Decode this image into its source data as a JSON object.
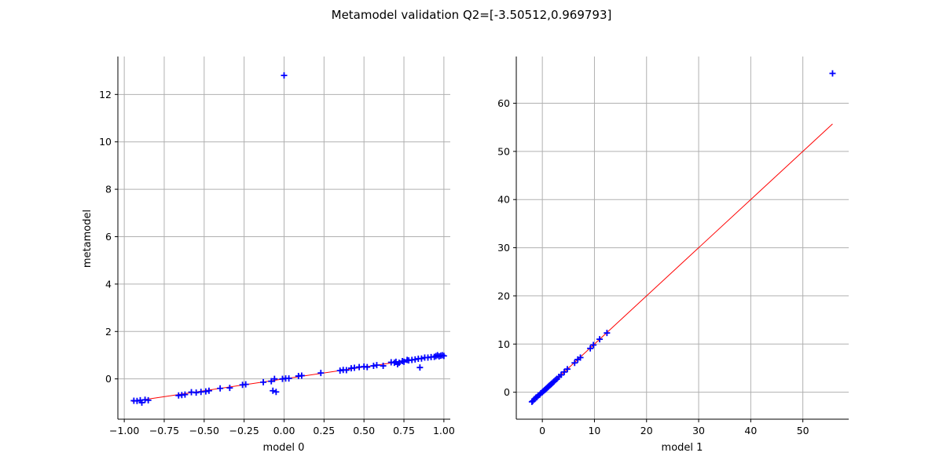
{
  "title": "Metamodel validation Q2=[-3.50512,0.969793]",
  "colors": {
    "points": "#0000ff",
    "diagonal": "#ff0000",
    "grid": "#b0b0b0",
    "axes": "#000000"
  },
  "chart_data": [
    {
      "type": "scatter",
      "xlabel": "model 0",
      "ylabel": "metamodel",
      "xlim": [
        -1.04,
        1.04
      ],
      "ylim": [
        -1.7,
        13.6
      ],
      "xticks": [
        -1.0,
        -0.75,
        -0.5,
        -0.25,
        0.0,
        0.25,
        0.5,
        0.75,
        1.0
      ],
      "xtick_labels": [
        "−1.00",
        "−0.75",
        "−0.50",
        "−0.25",
        "0.00",
        "0.25",
        "0.50",
        "0.75",
        "1.00"
      ],
      "yticks": [
        0,
        2,
        4,
        6,
        8,
        10,
        12
      ],
      "ytick_labels": [
        "0",
        "2",
        "4",
        "6",
        "8",
        "10",
        "12"
      ],
      "grid": true,
      "diagonal": {
        "x": [
          -0.95,
          1.0
        ],
        "y": [
          -0.95,
          1.0
        ]
      },
      "points": [
        [
          -0.94,
          -0.92
        ],
        [
          -0.92,
          -0.93
        ],
        [
          -0.9,
          -0.9
        ],
        [
          -0.89,
          -1.0
        ],
        [
          -0.87,
          -0.88
        ],
        [
          -0.85,
          -0.9
        ],
        [
          -0.66,
          -0.7
        ],
        [
          -0.64,
          -0.68
        ],
        [
          -0.62,
          -0.66
        ],
        [
          -0.58,
          -0.56
        ],
        [
          -0.55,
          -0.58
        ],
        [
          -0.52,
          -0.55
        ],
        [
          -0.49,
          -0.53
        ],
        [
          -0.47,
          -0.5
        ],
        [
          -0.4,
          -0.4
        ],
        [
          -0.34,
          -0.38
        ],
        [
          -0.26,
          -0.25
        ],
        [
          -0.24,
          -0.23
        ],
        [
          -0.13,
          -0.14
        ],
        [
          -0.08,
          -0.1
        ],
        [
          -0.07,
          -0.5
        ],
        [
          -0.06,
          0.0
        ],
        [
          -0.05,
          -0.55
        ],
        [
          -0.01,
          0.0
        ],
        [
          0.0,
          12.8
        ],
        [
          0.01,
          0.02
        ],
        [
          0.03,
          0.02
        ],
        [
          0.09,
          0.12
        ],
        [
          0.11,
          0.14
        ],
        [
          0.23,
          0.25
        ],
        [
          0.35,
          0.35
        ],
        [
          0.37,
          0.38
        ],
        [
          0.39,
          0.37
        ],
        [
          0.42,
          0.45
        ],
        [
          0.44,
          0.47
        ],
        [
          0.47,
          0.5
        ],
        [
          0.5,
          0.52
        ],
        [
          0.52,
          0.5
        ],
        [
          0.56,
          0.55
        ],
        [
          0.58,
          0.58
        ],
        [
          0.62,
          0.55
        ],
        [
          0.67,
          0.7
        ],
        [
          0.69,
          0.68
        ],
        [
          0.7,
          0.72
        ],
        [
          0.71,
          0.62
        ],
        [
          0.72,
          0.68
        ],
        [
          0.74,
          0.75
        ],
        [
          0.75,
          0.72
        ],
        [
          0.77,
          0.8
        ],
        [
          0.78,
          0.78
        ],
        [
          0.8,
          0.8
        ],
        [
          0.82,
          0.82
        ],
        [
          0.84,
          0.85
        ],
        [
          0.85,
          0.48
        ],
        [
          0.86,
          0.86
        ],
        [
          0.88,
          0.9
        ],
        [
          0.9,
          0.9
        ],
        [
          0.92,
          0.92
        ],
        [
          0.94,
          0.93
        ],
        [
          0.95,
          0.96
        ],
        [
          0.96,
          1.0
        ],
        [
          0.97,
          0.95
        ],
        [
          0.98,
          0.98
        ],
        [
          0.99,
          1.0
        ],
        [
          1.0,
          0.97
        ]
      ]
    },
    {
      "type": "scatter",
      "xlabel": "model 1",
      "ylabel": "",
      "xlim": [
        -5.0,
        58.8
      ],
      "ylim": [
        -5.6,
        69.7
      ],
      "xticks": [
        0,
        10,
        20,
        30,
        40,
        50
      ],
      "xtick_labels": [
        "0",
        "10",
        "20",
        "30",
        "40",
        "50"
      ],
      "yticks": [
        0,
        10,
        20,
        30,
        40,
        50,
        60
      ],
      "ytick_labels": [
        "0",
        "10",
        "20",
        "30",
        "40",
        "50",
        "60"
      ],
      "grid": true,
      "diagonal": {
        "x": [
          -2.1,
          55.7
        ],
        "y": [
          -2.1,
          55.7
        ]
      },
      "points": [
        [
          -2.0,
          -2.0
        ],
        [
          -1.8,
          -1.8
        ],
        [
          -1.5,
          -1.4
        ],
        [
          -1.2,
          -1.1
        ],
        [
          -1.0,
          -1.0
        ],
        [
          -0.8,
          -0.7
        ],
        [
          -0.5,
          -0.5
        ],
        [
          -0.3,
          -0.2
        ],
        [
          0.0,
          0.0
        ],
        [
          0.2,
          0.2
        ],
        [
          0.4,
          0.4
        ],
        [
          0.6,
          0.6
        ],
        [
          0.8,
          0.8
        ],
        [
          1.0,
          1.0
        ],
        [
          1.2,
          1.2
        ],
        [
          1.4,
          1.4
        ],
        [
          1.6,
          1.6
        ],
        [
          1.8,
          1.8
        ],
        [
          2.0,
          2.0
        ],
        [
          2.2,
          2.2
        ],
        [
          2.5,
          2.5
        ],
        [
          2.8,
          2.8
        ],
        [
          3.2,
          3.2
        ],
        [
          3.6,
          3.6
        ],
        [
          4.2,
          4.2
        ],
        [
          4.8,
          4.8
        ],
        [
          6.2,
          6.1
        ],
        [
          6.8,
          6.8
        ],
        [
          7.3,
          7.2
        ],
        [
          9.2,
          9.1
        ],
        [
          9.8,
          9.8
        ],
        [
          11.0,
          11.0
        ],
        [
          12.4,
          12.3
        ],
        [
          55.7,
          66.2
        ]
      ]
    }
  ]
}
